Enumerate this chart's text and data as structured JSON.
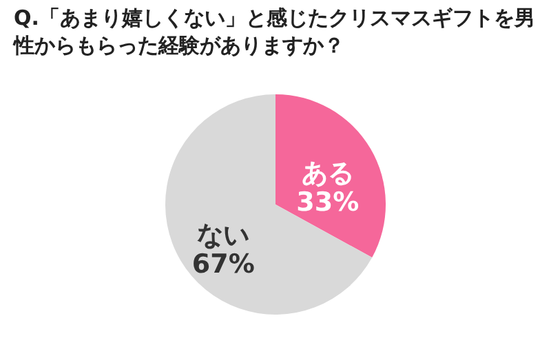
{
  "chart_data": {
    "type": "pie",
    "title": "Q.「あまり嬉しくない」と感じたクリスマスギフトを男性からもらった経験がありますか？",
    "categories": [
      "ある",
      "ない"
    ],
    "values": [
      33,
      67
    ],
    "colors": [
      "#f5679a",
      "#d9d9d9"
    ],
    "value_labels": [
      "33%",
      "67%"
    ]
  }
}
